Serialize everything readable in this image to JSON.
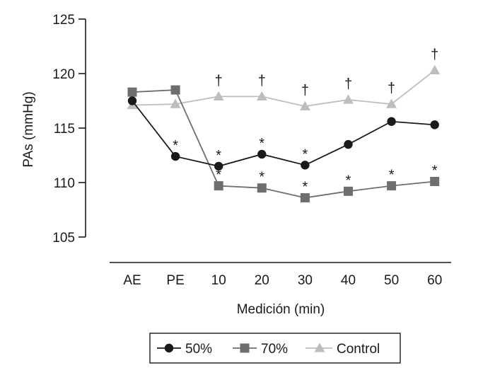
{
  "chart_data": {
    "type": "line",
    "title": "",
    "xlabel": "Medición (min)",
    "ylabel": "PAs (mmHg)",
    "categories": [
      "AE",
      "PE",
      "10",
      "20",
      "30",
      "40",
      "50",
      "60"
    ],
    "ylim": [
      105,
      125
    ],
    "yticks": [
      105,
      110,
      115,
      120,
      125
    ],
    "grid": false,
    "legend_position": "bottom",
    "series": [
      {
        "name": "50%",
        "marker": "circle",
        "color": "#1a1a1a",
        "values": [
          117.5,
          112.4,
          111.5,
          112.6,
          111.6,
          113.5,
          115.6,
          115.3
        ],
        "significance": [
          "",
          "*",
          "*",
          "*",
          "*",
          "",
          "",
          ""
        ]
      },
      {
        "name": "70%",
        "marker": "square",
        "color": "#6e6e6e",
        "values": [
          118.3,
          118.5,
          109.7,
          109.5,
          108.6,
          109.2,
          109.7,
          110.1
        ],
        "significance": [
          "",
          "",
          "*",
          "*",
          "*",
          "*",
          "*",
          "*"
        ]
      },
      {
        "name": "Control",
        "marker": "triangle",
        "color": "#bdbdbd",
        "values": [
          117.1,
          117.2,
          117.9,
          117.9,
          117.0,
          117.6,
          117.2,
          120.3
        ],
        "significance": [
          "",
          "",
          "†",
          "†",
          "†",
          "†",
          "†",
          "†"
        ]
      }
    ]
  }
}
